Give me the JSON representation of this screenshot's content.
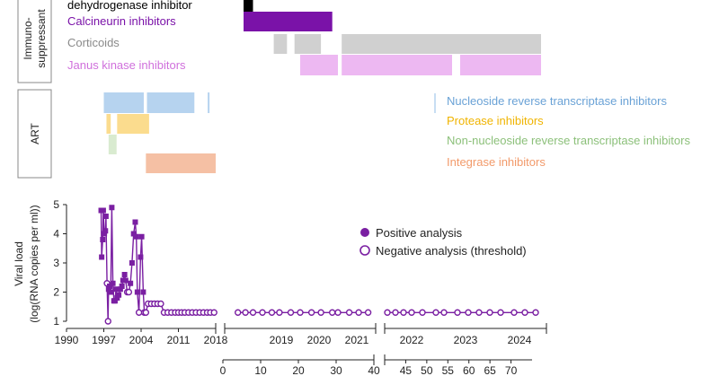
{
  "colors": {
    "black": "#000000",
    "calcineurin": "#7a12a8",
    "corticoids": "#d0d0d0",
    "jak": "#edb8f2",
    "nrti": "#b6d3ef",
    "pi": "#fbdc8e",
    "nnrti": "#d9ebd0",
    "ii": "#f5c0a4",
    "viral": "#7a1fa2",
    "text_nrti": "#6aa2d6",
    "text_pi": "#f0b400",
    "text_nnrti": "#8cc07a",
    "text_ii": "#f29a6a",
    "text_corticoids": "#8a8a8a",
    "text_jak": "#d070dc",
    "text_calcineurin": "#7a12a8"
  },
  "panels": {
    "immuno": {
      "box_label_line1": "Immuno-",
      "box_label_line2": "suppressant",
      "rows": [
        {
          "label": "dehydrogenase inhibitor"
        },
        {
          "label": "Calcineurin inhibitors"
        },
        {
          "label": "Corticoids"
        },
        {
          "label": "Janus kinase inhibitors"
        }
      ]
    },
    "art": {
      "box_label": "ART",
      "rows": [
        {
          "label": "Nucleoside reverse transcriptase inhibitors"
        },
        {
          "label": "Protease inhibitors"
        },
        {
          "label": "Non-nucleoside reverse transcriptase inhibitors"
        },
        {
          "label": "Integrase inhibitors"
        }
      ]
    }
  },
  "chart_data": {
    "type": "scatter",
    "ylabel_line1": "Viral load",
    "ylabel_line2": "(log(RNA copies per ml))",
    "ylim": [
      1,
      5
    ],
    "yticks": [
      "1",
      "2",
      "3",
      "4",
      "5"
    ],
    "legend": {
      "positive": "Positive analysis",
      "negative": "Negative analysis (threshold)",
      "placement": "top-right"
    },
    "segments": [
      {
        "name": "1990-2018",
        "unit": "year",
        "xlim": [
          1990,
          2018
        ],
        "ticks": [
          "1990",
          "1997",
          "2004",
          "2011",
          "2018"
        ],
        "tick_values": [
          1990,
          1997,
          2004,
          2011,
          2018
        ],
        "points": [
          {
            "x": 1996.5,
            "y": 4.8,
            "pos": true
          },
          {
            "x": 1996.6,
            "y": 3.2,
            "pos": true
          },
          {
            "x": 1996.8,
            "y": 3.8,
            "pos": true
          },
          {
            "x": 1996.9,
            "y": 4.8,
            "pos": true
          },
          {
            "x": 1997.1,
            "y": 4.0,
            "pos": true
          },
          {
            "x": 1997.3,
            "y": 4.1,
            "pos": true
          },
          {
            "x": 1997.4,
            "y": 4.6,
            "pos": true
          },
          {
            "x": 1997.6,
            "y": 2.3,
            "pos": false
          },
          {
            "x": 1997.8,
            "y": 1.0,
            "pos": false
          },
          {
            "x": 1997.9,
            "y": 2.1,
            "pos": true
          },
          {
            "x": 1998.1,
            "y": 2.2,
            "pos": true
          },
          {
            "x": 1998.3,
            "y": 2.0,
            "pos": true
          },
          {
            "x": 1998.5,
            "y": 4.9,
            "pos": true
          },
          {
            "x": 1998.7,
            "y": 2.3,
            "pos": true
          },
          {
            "x": 1998.9,
            "y": 1.7,
            "pos": true
          },
          {
            "x": 1999.1,
            "y": 1.7,
            "pos": true
          },
          {
            "x": 1999.3,
            "y": 2.1,
            "pos": true
          },
          {
            "x": 1999.5,
            "y": 1.8,
            "pos": true
          },
          {
            "x": 1999.8,
            "y": 1.9,
            "pos": true
          },
          {
            "x": 2000.1,
            "y": 2.1,
            "pos": true
          },
          {
            "x": 2000.4,
            "y": 2.2,
            "pos": true
          },
          {
            "x": 2000.6,
            "y": 2.4,
            "pos": true
          },
          {
            "x": 2000.9,
            "y": 2.6,
            "pos": true
          },
          {
            "x": 2001.1,
            "y": 2.4,
            "pos": true
          },
          {
            "x": 2001.4,
            "y": 2.0,
            "pos": false
          },
          {
            "x": 2001.7,
            "y": 2.0,
            "pos": false
          },
          {
            "x": 2002.0,
            "y": 2.3,
            "pos": true
          },
          {
            "x": 2002.3,
            "y": 3.0,
            "pos": true
          },
          {
            "x": 2002.6,
            "y": 4.0,
            "pos": true
          },
          {
            "x": 2002.9,
            "y": 4.4,
            "pos": true
          },
          {
            "x": 2003.1,
            "y": 3.9,
            "pos": true
          },
          {
            "x": 2003.3,
            "y": 2.0,
            "pos": true
          },
          {
            "x": 2003.6,
            "y": 1.3,
            "pos": false
          },
          {
            "x": 2003.9,
            "y": 3.2,
            "pos": true
          },
          {
            "x": 2004.1,
            "y": 3.9,
            "pos": true
          },
          {
            "x": 2004.4,
            "y": 2.0,
            "pos": true
          },
          {
            "x": 2004.6,
            "y": 1.3,
            "pos": false
          },
          {
            "x": 2004.9,
            "y": 1.3,
            "pos": false
          },
          {
            "x": 2005.3,
            "y": 1.6,
            "pos": false
          },
          {
            "x": 2005.9,
            "y": 1.6,
            "pos": false
          },
          {
            "x": 2006.5,
            "y": 1.6,
            "pos": false
          },
          {
            "x": 2007.1,
            "y": 1.6,
            "pos": false
          },
          {
            "x": 2007.7,
            "y": 1.6,
            "pos": false
          },
          {
            "x": 2008.3,
            "y": 1.3,
            "pos": false
          },
          {
            "x": 2009.0,
            "y": 1.3,
            "pos": false
          },
          {
            "x": 2009.7,
            "y": 1.3,
            "pos": false
          },
          {
            "x": 2010.4,
            "y": 1.3,
            "pos": false
          },
          {
            "x": 2011.0,
            "y": 1.3,
            "pos": false
          },
          {
            "x": 2011.6,
            "y": 1.3,
            "pos": false
          },
          {
            "x": 2012.2,
            "y": 1.3,
            "pos": false
          },
          {
            "x": 2012.9,
            "y": 1.3,
            "pos": false
          },
          {
            "x": 2013.6,
            "y": 1.3,
            "pos": false
          },
          {
            "x": 2014.3,
            "y": 1.3,
            "pos": false
          },
          {
            "x": 2015.0,
            "y": 1.3,
            "pos": false
          },
          {
            "x": 2015.7,
            "y": 1.3,
            "pos": false
          },
          {
            "x": 2016.4,
            "y": 1.3,
            "pos": false
          },
          {
            "x": 2017.0,
            "y": 1.3,
            "pos": false
          },
          {
            "x": 2017.7,
            "y": 1.3,
            "pos": false
          }
        ]
      },
      {
        "name": "2018-2025",
        "unit": "year",
        "xlim": [
          2018,
          2025
        ],
        "ticks": [
          "2019",
          "2020",
          "2021",
          "2022",
          "2023",
          "2024"
        ],
        "tick_values": [
          2019,
          2020,
          2021,
          2022,
          2023,
          2024
        ],
        "points": [
          {
            "x": 2018.35,
            "y": 1.3,
            "pos": false
          },
          {
            "x": 2018.55,
            "y": 1.3,
            "pos": false
          },
          {
            "x": 2018.75,
            "y": 1.3,
            "pos": false
          },
          {
            "x": 2019.0,
            "y": 1.3,
            "pos": false
          },
          {
            "x": 2019.25,
            "y": 1.3,
            "pos": false
          },
          {
            "x": 2019.45,
            "y": 1.3,
            "pos": false
          },
          {
            "x": 2019.75,
            "y": 1.3,
            "pos": false
          },
          {
            "x": 2020.0,
            "y": 1.3,
            "pos": false
          },
          {
            "x": 2020.3,
            "y": 1.3,
            "pos": false
          },
          {
            "x": 2020.55,
            "y": 1.3,
            "pos": false
          },
          {
            "x": 2020.85,
            "y": 1.3,
            "pos": false
          },
          {
            "x": 2021.0,
            "y": 1.3,
            "pos": false
          },
          {
            "x": 2021.3,
            "y": 1.3,
            "pos": false
          },
          {
            "x": 2021.55,
            "y": 1.3,
            "pos": false
          },
          {
            "x": 2021.8,
            "y": 1.3,
            "pos": false
          },
          {
            "x": 2022.05,
            "y": 1.3,
            "pos": false
          },
          {
            "x": 2022.2,
            "y": 1.3,
            "pos": false
          },
          {
            "x": 2022.35,
            "y": 1.3,
            "pos": false
          },
          {
            "x": 2022.5,
            "y": 1.3,
            "pos": false
          },
          {
            "x": 2022.7,
            "y": 1.3,
            "pos": false
          },
          {
            "x": 2022.95,
            "y": 1.3,
            "pos": false
          },
          {
            "x": 2023.1,
            "y": 1.3,
            "pos": false
          },
          {
            "x": 2023.35,
            "y": 1.3,
            "pos": false
          },
          {
            "x": 2023.55,
            "y": 1.3,
            "pos": false
          },
          {
            "x": 2023.75,
            "y": 1.3,
            "pos": false
          },
          {
            "x": 2023.95,
            "y": 1.3,
            "pos": false
          },
          {
            "x": 2024.15,
            "y": 1.3,
            "pos": false
          },
          {
            "x": 2024.4,
            "y": 1.3,
            "pos": false
          },
          {
            "x": 2024.6,
            "y": 1.3,
            "pos": false
          },
          {
            "x": 2024.8,
            "y": 1.3,
            "pos": false
          }
        ]
      }
    ],
    "days_axes": [
      {
        "name": "days-0-40",
        "xlim": [
          0,
          40
        ],
        "ticks": [
          "0",
          "10",
          "20",
          "30",
          "40"
        ],
        "tick_values": [
          0,
          10,
          20,
          30,
          40
        ]
      },
      {
        "name": "days-40-75",
        "xlim": [
          40,
          75
        ],
        "ticks": [
          "45",
          "50",
          "55",
          "60",
          "65",
          "70"
        ],
        "tick_values": [
          45,
          50,
          55,
          60,
          65,
          70
        ]
      }
    ],
    "treatment_bars": {
      "immuno": [
        {
          "row": 0,
          "start": 2018.5,
          "end": 2018.75
        },
        {
          "row": 1,
          "start": 2018.5,
          "end": 2019.25
        },
        {
          "row": 1,
          "start": 2019.25,
          "end": 2020.85
        },
        {
          "row": 2,
          "start": 2019.3,
          "end": 2019.65
        },
        {
          "row": 2,
          "start": 2019.85,
          "end": 2020.55
        },
        {
          "row": 2,
          "start": 2021.1,
          "end": 2024.9
        },
        {
          "row": 3,
          "start": 2020.0,
          "end": 2021.0
        },
        {
          "row": 3,
          "start": 2021.1,
          "end": 2023.25
        },
        {
          "row": 3,
          "start": 2023.4,
          "end": 2024.9
        }
      ],
      "art": [
        {
          "row": 0,
          "start": 1997.0,
          "end": 2004.5
        },
        {
          "row": 0,
          "start": 2005.1,
          "end": 2014.0
        },
        {
          "row": 0,
          "start": 2016.5,
          "end": 2016.6
        },
        {
          "row": 1,
          "start": 1997.5,
          "end": 1998.3
        },
        {
          "row": 1,
          "start": 1999.5,
          "end": 2005.5
        },
        {
          "row": 2,
          "start": 1997.9,
          "end": 1999.4
        },
        {
          "row": 3,
          "start": 2004.9,
          "end": 2018.0
        }
      ]
    }
  }
}
